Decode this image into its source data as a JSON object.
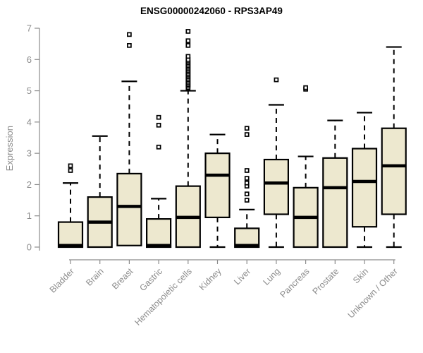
{
  "title": "ENSG00000242060 - RPS3AP49",
  "colors": {
    "background": "#FFFFFF",
    "box_fill": "#EDE8CF",
    "box_border": "#000000",
    "median": "#000000",
    "whisker": "#000000",
    "outlier": "#000000",
    "axis": "#8C8C8C",
    "tick_label": "#8C8C8C",
    "title_color": "#000000",
    "ylabel_color": "#8C8C8C"
  },
  "chart_data": {
    "type": "boxplot",
    "title": "ENSG00000242060 - RPS3AP49",
    "xlabel": "",
    "ylabel": "Expression",
    "ylim": [
      0,
      7
    ],
    "yticks": [
      0,
      1,
      2,
      3,
      4,
      5,
      6,
      7
    ],
    "grid": false,
    "legend": "none",
    "categories": [
      "Bladder",
      "Brain",
      "Breast",
      "Gastric",
      "Hematopoietic cells",
      "Kidney",
      "Liver",
      "Lung",
      "Pancreas",
      "Prostate",
      "Skin",
      "Unknown / Other"
    ],
    "series": [
      {
        "name": "Bladder",
        "low": 0,
        "q1": 0,
        "median": 0.05,
        "q3": 0.8,
        "high": 2.05,
        "outliers": [
          2.45,
          2.6
        ]
      },
      {
        "name": "Brain",
        "low": 0,
        "q1": 0,
        "median": 0.8,
        "q3": 1.6,
        "high": 3.55,
        "outliers": []
      },
      {
        "name": "Breast",
        "low": 0.05,
        "q1": 0.05,
        "median": 1.3,
        "q3": 2.35,
        "high": 5.3,
        "outliers": [
          6.45,
          6.8
        ]
      },
      {
        "name": "Gastric",
        "low": 0,
        "q1": 0,
        "median": 0.05,
        "q3": 0.9,
        "high": 1.55,
        "outliers": [
          3.2,
          3.9,
          4.15
        ]
      },
      {
        "name": "Hematopoietic cells",
        "low": 0,
        "q1": 0,
        "median": 0.95,
        "q3": 1.95,
        "high": 5.0,
        "outliers": [
          5.1,
          5.15,
          5.2,
          5.25,
          5.3,
          5.35,
          5.4,
          5.45,
          5.5,
          5.55,
          5.6,
          5.65,
          5.7,
          5.75,
          5.8,
          5.85,
          5.9,
          5.95,
          6.0,
          6.1,
          6.45,
          6.6,
          6.9
        ]
      },
      {
        "name": "Kidney",
        "low": 0,
        "q1": 0.95,
        "median": 2.3,
        "q3": 3.0,
        "high": 3.6,
        "outliers": []
      },
      {
        "name": "Liver",
        "low": 0,
        "q1": 0,
        "median": 0.05,
        "q3": 0.6,
        "high": 1.2,
        "outliers": [
          1.5,
          1.7,
          1.95,
          2.05,
          2.2,
          2.45,
          3.6,
          3.8
        ]
      },
      {
        "name": "Lung",
        "low": 0,
        "q1": 1.05,
        "median": 2.05,
        "q3": 2.8,
        "high": 4.55,
        "outliers": [
          5.35
        ]
      },
      {
        "name": "Pancreas",
        "low": 0,
        "q1": 0,
        "median": 0.95,
        "q3": 1.9,
        "high": 2.9,
        "outliers": [
          5.05,
          5.1
        ]
      },
      {
        "name": "Prostate",
        "low": 0,
        "q1": 0,
        "median": 1.9,
        "q3": 2.85,
        "high": 4.05,
        "outliers": []
      },
      {
        "name": "Skin",
        "low": 0,
        "q1": 0.65,
        "median": 2.1,
        "q3": 3.15,
        "high": 4.3,
        "outliers": []
      },
      {
        "name": "Unknown / Other",
        "low": 0,
        "q1": 1.05,
        "median": 2.6,
        "q3": 3.8,
        "high": 6.4,
        "outliers": []
      }
    ]
  }
}
